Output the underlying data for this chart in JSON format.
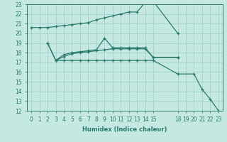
{
  "xlabel": "Humidex (Indice chaleur)",
  "bg_color": "#c5e8e2",
  "grid_color": "#9dcec7",
  "line_color": "#2a7a6a",
  "xlim_min": -0.5,
  "xlim_max": 23.5,
  "ylim_min": 12,
  "ylim_max": 23,
  "yticks": [
    12,
    13,
    14,
    15,
    16,
    17,
    18,
    19,
    20,
    21,
    22,
    23
  ],
  "xtick_positions": [
    0,
    1,
    2,
    3,
    4,
    5,
    6,
    7,
    8,
    9,
    10,
    11,
    12,
    13,
    14,
    15,
    18,
    19,
    20,
    21,
    22,
    23
  ],
  "line1_x": [
    0,
    1,
    2,
    3,
    4,
    5,
    6,
    7,
    8,
    9,
    10,
    11,
    12,
    13,
    14,
    15,
    18
  ],
  "line1_y": [
    20.6,
    20.6,
    20.6,
    20.7,
    20.8,
    20.9,
    21.0,
    21.1,
    21.4,
    21.6,
    21.8,
    22.0,
    22.2,
    22.2,
    23.2,
    23.3,
    20.0
  ],
  "line2_x": [
    2,
    3,
    4,
    5,
    6,
    7,
    8,
    9,
    10,
    11,
    12,
    13,
    14,
    15,
    18
  ],
  "line2_y": [
    19.0,
    17.2,
    17.8,
    18.0,
    18.1,
    18.2,
    18.3,
    19.5,
    18.5,
    18.5,
    18.5,
    18.5,
    18.5,
    17.5,
    17.5
  ],
  "line3_x": [
    2,
    3,
    4,
    5,
    6,
    7,
    8,
    9,
    10,
    11,
    12,
    13,
    14,
    15,
    18
  ],
  "line3_y": [
    19.0,
    17.2,
    17.6,
    17.9,
    18.0,
    18.1,
    18.2,
    18.3,
    18.4,
    18.4,
    18.4,
    18.4,
    18.4,
    17.5,
    17.5
  ],
  "line4_x": [
    3,
    4,
    5,
    6,
    7,
    8,
    9,
    10,
    11,
    12,
    13,
    14,
    15,
    18,
    20,
    21,
    22,
    23
  ],
  "line4_y": [
    17.2,
    17.2,
    17.2,
    17.2,
    17.2,
    17.2,
    17.2,
    17.2,
    17.2,
    17.2,
    17.2,
    17.2,
    17.2,
    15.8,
    15.8,
    14.2,
    13.2,
    12.0
  ]
}
